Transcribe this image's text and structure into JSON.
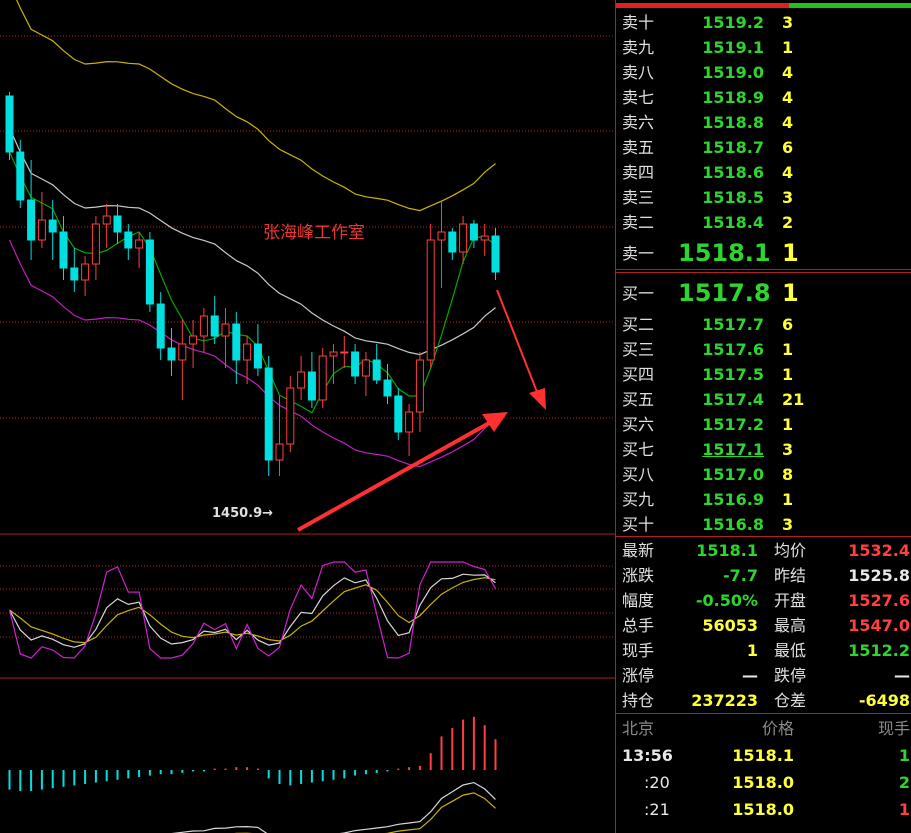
{
  "watermark": "张海峰工作室",
  "low_marker": "1450.9→",
  "order_book": {
    "asks": [
      {
        "label": "卖十",
        "price": "1519.2",
        "vol": "3"
      },
      {
        "label": "卖九",
        "price": "1519.1",
        "vol": "1"
      },
      {
        "label": "卖八",
        "price": "1519.0",
        "vol": "4"
      },
      {
        "label": "卖七",
        "price": "1518.9",
        "vol": "4"
      },
      {
        "label": "卖六",
        "price": "1518.8",
        "vol": "4"
      },
      {
        "label": "卖五",
        "price": "1518.7",
        "vol": "6"
      },
      {
        "label": "卖四",
        "price": "1518.6",
        "vol": "4"
      },
      {
        "label": "卖三",
        "price": "1518.5",
        "vol": "3"
      },
      {
        "label": "卖二",
        "price": "1518.4",
        "vol": "2"
      },
      {
        "label": "卖一",
        "price": "1518.1",
        "vol": "1"
      }
    ],
    "bids": [
      {
        "label": "买一",
        "price": "1517.8",
        "vol": "1"
      },
      {
        "label": "买二",
        "price": "1517.7",
        "vol": "6"
      },
      {
        "label": "买三",
        "price": "1517.6",
        "vol": "1"
      },
      {
        "label": "买四",
        "price": "1517.5",
        "vol": "1"
      },
      {
        "label": "买五",
        "price": "1517.4",
        "vol": "21"
      },
      {
        "label": "买六",
        "price": "1517.2",
        "vol": "1"
      },
      {
        "label": "买七",
        "price": "1517.1",
        "vol": "3"
      },
      {
        "label": "买八",
        "price": "1517.0",
        "vol": "8"
      },
      {
        "label": "买九",
        "price": "1516.9",
        "vol": "1"
      },
      {
        "label": "买十",
        "price": "1516.8",
        "vol": "3"
      }
    ]
  },
  "quote": {
    "latest_label": "最新",
    "latest": "1518.1",
    "avg_label": "均价",
    "avg": "1532.4",
    "change_label": "涨跌",
    "change": "-7.7",
    "prev_settle_label": "昨结",
    "prev_settle": "1525.8",
    "amplitude_label": "幅度",
    "amplitude": "-0.50%",
    "open_label": "开盘",
    "open": "1527.6",
    "total_vol_label": "总手",
    "total_vol": "56053",
    "high_label": "最高",
    "high": "1547.0",
    "cur_vol_label": "现手",
    "cur_vol": "1",
    "low_label": "最低",
    "low": "1512.2",
    "limit_up_label": "涨停",
    "limit_up": "—",
    "limit_down_label": "跌停",
    "limit_down": "—",
    "oi_label": "持仓",
    "oi": "237223",
    "oi_diff_label": "仓差",
    "oi_diff": "-6498"
  },
  "ticks": {
    "headers": {
      "time": "北京",
      "price": "价格",
      "vol": "现手"
    },
    "rows": [
      {
        "time": "13:56",
        "price": "1518.1",
        "vol": "1"
      },
      {
        "time": ":20",
        "price": "1518.0",
        "vol": "2"
      },
      {
        "time": ":21",
        "price": "1518.0",
        "vol": "1"
      }
    ]
  },
  "colors": {
    "up": "#ff4040",
    "down": "#00e0e0",
    "grid": "#b0201f",
    "ma_yellow": "#c8b400",
    "ma_gray": "#c8c8c8",
    "ma_green": "#00a800",
    "ma_purple": "#c020c0"
  },
  "chart_data": {
    "type": "candlestick",
    "title": "",
    "ohlc": [
      [
        1546,
        1547,
        1530,
        1532
      ],
      [
        1532,
        1535,
        1518,
        1520
      ],
      [
        1520,
        1530,
        1505,
        1510
      ],
      [
        1510,
        1522,
        1508,
        1515
      ],
      [
        1515,
        1520,
        1505,
        1512
      ],
      [
        1512,
        1516,
        1500,
        1503
      ],
      [
        1503,
        1508,
        1497,
        1500
      ],
      [
        1500,
        1506,
        1496,
        1504
      ],
      [
        1504,
        1516,
        1500,
        1514
      ],
      [
        1514,
        1519,
        1508,
        1516
      ],
      [
        1516,
        1519,
        1509,
        1512
      ],
      [
        1512,
        1514,
        1505,
        1508
      ],
      [
        1508,
        1512,
        1503,
        1510
      ],
      [
        1510,
        1512,
        1492,
        1494
      ],
      [
        1494,
        1497,
        1480,
        1483
      ],
      [
        1483,
        1488,
        1476,
        1480
      ],
      [
        1480,
        1490,
        1470,
        1484
      ],
      [
        1484,
        1490,
        1478,
        1486
      ],
      [
        1486,
        1493,
        1482,
        1491
      ],
      [
        1491,
        1496,
        1484,
        1486
      ],
      [
        1486,
        1493,
        1478,
        1489
      ],
      [
        1489,
        1492,
        1474,
        1480
      ],
      [
        1480,
        1486,
        1474,
        1484
      ],
      [
        1484,
        1489,
        1476,
        1478
      ],
      [
        1478,
        1481,
        1451,
        1455
      ],
      [
        1455,
        1471,
        1451,
        1459
      ],
      [
        1459,
        1476,
        1457,
        1473
      ],
      [
        1473,
        1481,
        1470,
        1477
      ],
      [
        1477,
        1482,
        1468,
        1470
      ],
      [
        1470,
        1483,
        1468,
        1481
      ],
      [
        1481,
        1484,
        1474,
        1482
      ],
      [
        1482,
        1486,
        1478,
        1482
      ],
      [
        1482,
        1484,
        1474,
        1476
      ],
      [
        1476,
        1482,
        1471,
        1480
      ],
      [
        1480,
        1484,
        1474,
        1475
      ],
      [
        1475,
        1479,
        1469,
        1471
      ],
      [
        1471,
        1473,
        1460,
        1462
      ],
      [
        1462,
        1469,
        1456,
        1467
      ],
      [
        1467,
        1482,
        1462,
        1480
      ],
      [
        1480,
        1514,
        1478,
        1510
      ],
      [
        1510,
        1520,
        1498,
        1512
      ],
      [
        1512,
        1513,
        1505,
        1507
      ],
      [
        1507,
        1516,
        1504,
        1514
      ],
      [
        1514,
        1515,
        1508,
        1510
      ],
      [
        1510,
        1514,
        1506,
        1511
      ],
      [
        1511,
        1513,
        1500,
        1502
      ]
    ],
    "macd_hist": [
      -14,
      -15,
      -15,
      -14,
      -13,
      -12,
      -11,
      -10,
      -9,
      -8,
      -7,
      -6,
      -5,
      -4,
      -3,
      -3,
      -2,
      -1,
      -1,
      1,
      1,
      2,
      2,
      1,
      -6,
      -10,
      -11,
      -10,
      -9,
      -8,
      -7,
      -6,
      -4,
      -3,
      -2,
      -1,
      1,
      2,
      3,
      12,
      24,
      30,
      36,
      38,
      32,
      22
    ]
  }
}
